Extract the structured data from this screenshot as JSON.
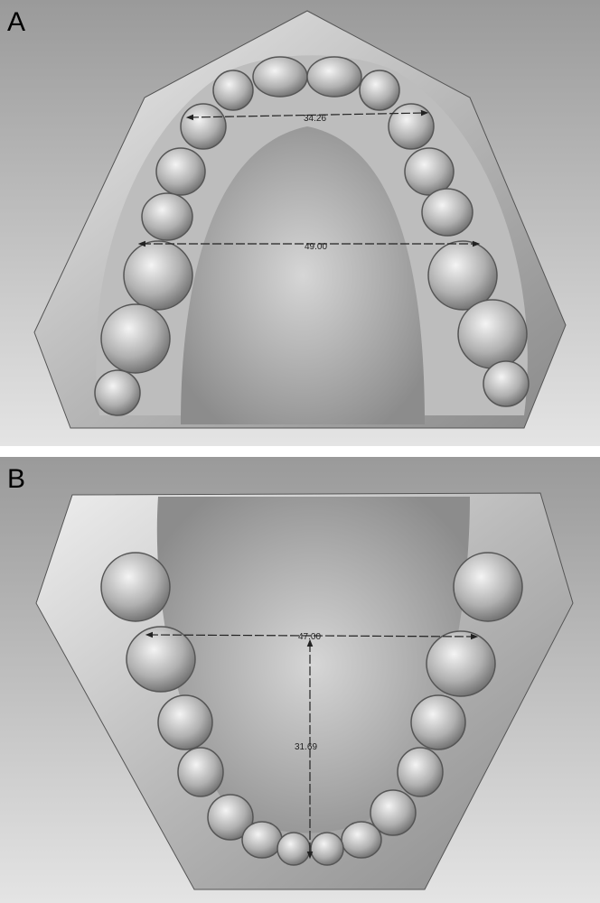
{
  "panels": [
    {
      "label": "A",
      "measurements": [
        "34.26",
        "49.00"
      ]
    },
    {
      "label": "B",
      "measurements": [
        "47.00",
        "31.69"
      ]
    }
  ]
}
